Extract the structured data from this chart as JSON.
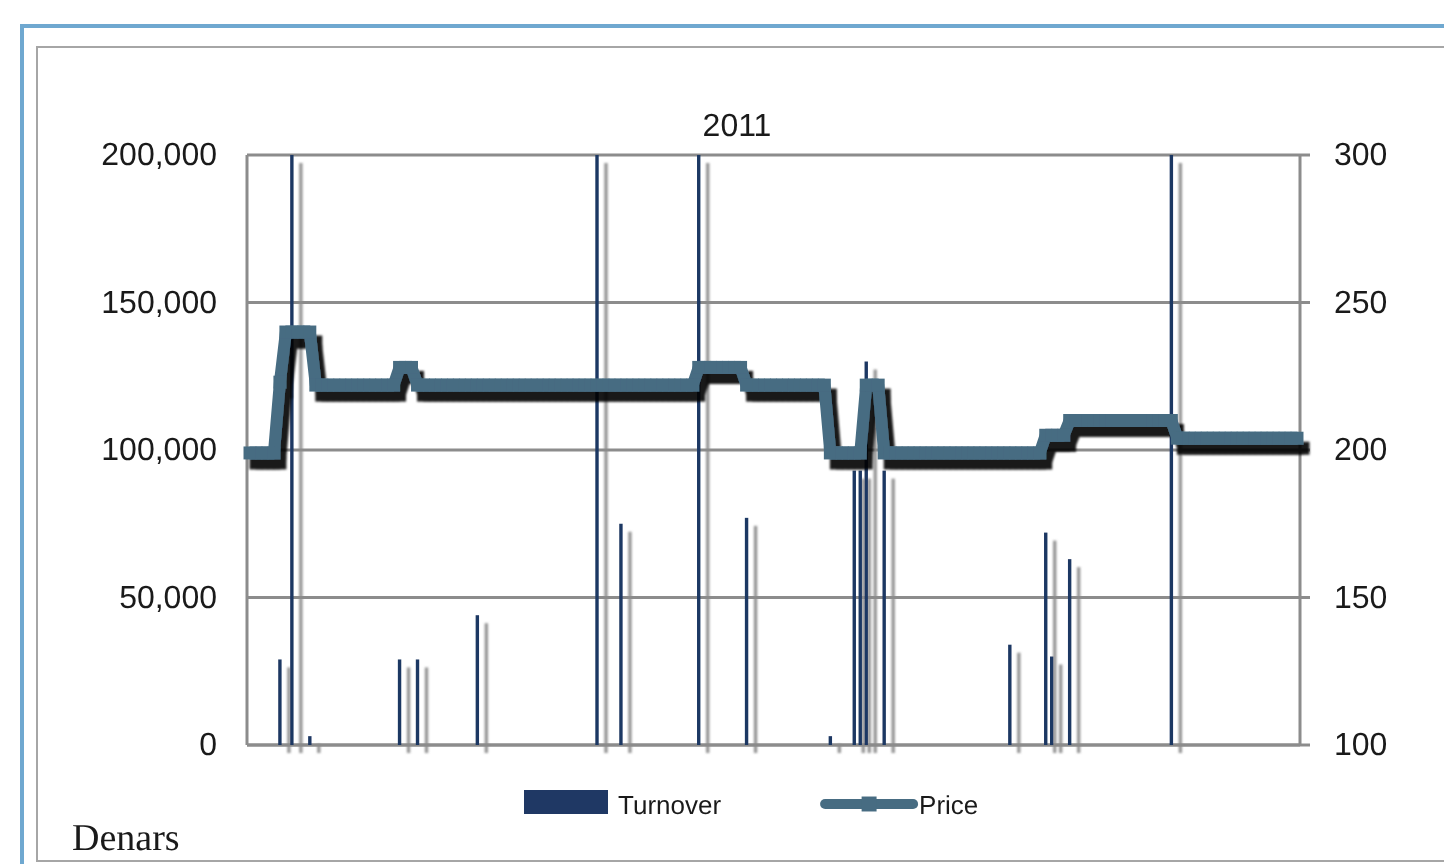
{
  "chart_data": {
    "type": "bar",
    "title": "2011",
    "ylabel": "Denars",
    "categories": [
      null,
      null,
      null,
      null,
      null,
      null,
      null,
      null,
      null,
      null,
      null,
      null,
      null,
      null,
      null,
      null,
      null,
      null,
      null,
      null,
      null,
      null,
      null,
      null,
      null,
      null,
      null,
      null,
      null,
      null,
      null,
      null,
      null,
      null,
      null,
      null,
      null,
      null,
      null,
      null,
      null,
      null,
      null,
      null,
      null,
      null,
      null,
      null,
      null,
      null,
      null,
      null,
      null,
      null,
      null,
      null,
      null,
      null,
      null,
      null,
      null,
      null,
      null,
      null,
      null,
      null,
      null,
      null,
      null,
      null,
      null,
      null,
      null,
      null,
      null,
      null,
      null,
      null,
      null,
      null,
      null,
      null,
      null,
      null,
      null,
      null,
      null,
      null,
      null,
      null,
      null,
      null,
      null,
      null,
      null,
      null,
      null,
      null,
      null,
      null,
      null,
      null,
      null,
      null,
      null,
      null,
      null,
      null,
      null,
      null,
      null,
      null,
      null,
      null,
      null,
      null,
      null,
      null,
      null,
      null,
      null,
      null,
      null,
      null,
      null,
      null,
      null,
      null,
      null,
      null,
      null,
      null,
      null,
      null,
      null,
      null,
      null,
      null,
      null,
      null,
      null,
      null,
      null,
      null,
      null,
      null,
      null,
      null,
      null,
      null,
      null,
      null,
      null,
      null,
      null,
      null,
      null,
      null,
      null,
      null,
      null,
      null,
      null,
      null,
      null,
      null,
      null,
      null,
      null,
      null,
      null,
      null,
      null,
      null,
      null,
      null
    ],
    "series": [
      {
        "name": "Turnover",
        "color": "#1f3864",
        "values": [
          null,
          null,
          null,
          null,
          null,
          29000,
          null,
          200000,
          null,
          null,
          3000,
          null,
          null,
          null,
          null,
          null,
          null,
          null,
          null,
          null,
          null,
          null,
          null,
          null,
          null,
          29000,
          null,
          null,
          29000,
          null,
          null,
          null,
          null,
          null,
          null,
          null,
          null,
          null,
          44000,
          null,
          null,
          null,
          null,
          null,
          null,
          null,
          null,
          null,
          null,
          null,
          null,
          null,
          null,
          null,
          null,
          null,
          null,
          null,
          200000,
          null,
          null,
          null,
          75000,
          null,
          null,
          null,
          null,
          null,
          null,
          null,
          null,
          null,
          null,
          null,
          null,
          200000,
          null,
          null,
          null,
          null,
          null,
          null,
          null,
          77000,
          null,
          null,
          null,
          null,
          null,
          null,
          null,
          null,
          null,
          null,
          null,
          null,
          null,
          3000,
          null,
          null,
          null,
          93000,
          93000,
          130000,
          null,
          null,
          93000,
          null,
          null,
          null,
          null,
          null,
          null,
          null,
          null,
          null,
          null,
          null,
          null,
          null,
          null,
          null,
          null,
          null,
          null,
          null,
          null,
          34000,
          null,
          null,
          null,
          null,
          null,
          72000,
          30000,
          null,
          null,
          63000,
          null,
          null,
          null,
          null,
          null,
          null,
          null,
          null,
          null,
          null,
          null,
          null,
          null,
          null,
          null,
          null,
          200000,
          null,
          null,
          null,
          null,
          null,
          null,
          null,
          null,
          null,
          null,
          null,
          null,
          null,
          null,
          null,
          null,
          null,
          null,
          null,
          null,
          null
        ]
      },
      {
        "name": "Price",
        "type": "line",
        "axis": "y2",
        "color": "#476c82",
        "values": [
          199,
          199,
          199,
          199,
          199,
          223,
          240,
          240,
          240,
          240,
          240,
          222,
          222,
          222,
          222,
          222,
          222,
          222,
          222,
          222,
          222,
          222,
          222,
          222,
          222,
          228,
          228,
          228,
          222,
          222,
          222,
          222,
          222,
          222,
          222,
          222,
          222,
          222,
          222,
          222,
          222,
          222,
          222,
          222,
          222,
          222,
          222,
          222,
          222,
          222,
          222,
          222,
          222,
          222,
          222,
          222,
          222,
          222,
          222,
          222,
          222,
          222,
          222,
          222,
          222,
          222,
          222,
          222,
          222,
          222,
          222,
          222,
          222,
          222,
          222,
          228,
          228,
          228,
          228,
          228,
          228,
          228,
          228,
          222,
          222,
          222,
          222,
          222,
          222,
          222,
          222,
          222,
          222,
          222,
          222,
          222,
          222,
          199,
          199,
          199,
          199,
          199,
          199,
          222,
          222,
          222,
          199,
          199,
          199,
          199,
          199,
          199,
          199,
          199,
          199,
          199,
          199,
          199,
          199,
          199,
          199,
          199,
          199,
          199,
          199,
          199,
          199,
          199,
          199,
          199,
          199,
          199,
          199,
          205,
          205,
          205,
          205,
          210,
          210,
          210,
          210,
          210,
          210,
          210,
          210,
          210,
          210,
          210,
          210,
          210,
          210,
          210,
          210,
          210,
          210,
          204,
          204,
          204,
          204,
          204,
          204,
          204,
          204,
          204,
          204,
          204,
          204,
          204,
          204,
          204,
          204,
          204,
          204,
          204,
          204,
          204
        ]
      }
    ],
    "ylim": [
      0,
      200000
    ],
    "yticks": [
      0,
      {
        "value": 50000,
        "label": "50,000"
      },
      {
        "value": 100000,
        "label": "100,000"
      },
      {
        "value": 150000,
        "label": "150,000"
      },
      {
        "value": 200000,
        "label": "200,000"
      }
    ],
    "y2lim": [
      100,
      300
    ],
    "y2ticks": [
      100,
      150,
      200,
      250,
      300
    ],
    "grid": "y",
    "legend": "bottom",
    "marker": "square"
  }
}
